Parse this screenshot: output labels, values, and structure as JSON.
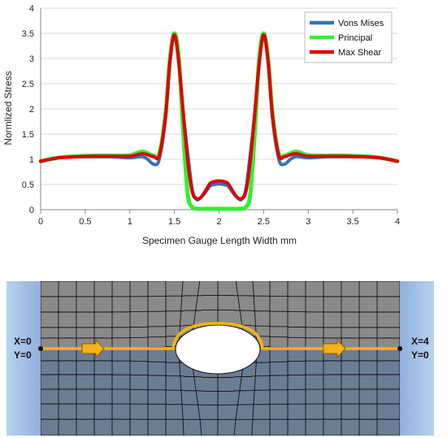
{
  "chart_data": {
    "type": "line",
    "title": "",
    "xlabel": "Specimen Gauge Length Width mm",
    "ylabel": "Normlized Stress",
    "xlim": [
      0,
      4
    ],
    "ylim": [
      0,
      4
    ],
    "xticks": [
      "0",
      "0.5",
      "1",
      "1.5",
      "2",
      "2.5",
      "3",
      "3.5",
      "4"
    ],
    "yticks": [
      "0",
      "0.5",
      "1",
      "1.5",
      "2",
      "2.5",
      "3",
      "3.5",
      "4"
    ],
    "grid": "horizontal",
    "legend_position": "top-right",
    "x": [
      0,
      0.2,
      0.4,
      0.6,
      0.8,
      1.0,
      1.1,
      1.15,
      1.2,
      1.27,
      1.33,
      1.4,
      1.45,
      1.5,
      1.55,
      1.6,
      1.65,
      1.7,
      1.75,
      1.8,
      1.85,
      1.9,
      1.95,
      2.0,
      2.05,
      2.1,
      2.15,
      2.2,
      2.25,
      2.3,
      2.35,
      2.4,
      2.45,
      2.5,
      2.55,
      2.6,
      2.67,
      2.73,
      2.8,
      2.85,
      2.9,
      3.0,
      3.2,
      3.4,
      3.6,
      3.8,
      4.0
    ],
    "series": [
      {
        "name": "Vons Mises",
        "color": "#2e75b6",
        "values": [
          0.97,
          1.03,
          1.05,
          1.05,
          1.05,
          1.03,
          1.05,
          1.05,
          1.0,
          0.9,
          1.0,
          1.8,
          2.9,
          3.47,
          2.9,
          1.9,
          1.1,
          0.4,
          0.2,
          0.25,
          0.35,
          0.47,
          0.5,
          0.51,
          0.5,
          0.47,
          0.35,
          0.25,
          0.2,
          0.4,
          1.1,
          1.9,
          2.9,
          3.47,
          2.9,
          1.8,
          1.0,
          0.9,
          1.0,
          1.05,
          1.05,
          1.03,
          1.05,
          1.05,
          1.05,
          1.03,
          0.97
        ]
      },
      {
        "name": "Principal",
        "color": "#33ee33",
        "values": [
          0.96,
          1.03,
          1.06,
          1.07,
          1.07,
          1.08,
          1.14,
          1.15,
          1.12,
          1.07,
          1.1,
          1.9,
          3.0,
          3.5,
          3.0,
          1.5,
          0.3,
          0.05,
          0.02,
          0.01,
          0.01,
          0.01,
          0.01,
          0.01,
          0.01,
          0.01,
          0.01,
          0.01,
          0.02,
          0.05,
          0.3,
          1.5,
          3.0,
          3.5,
          3.0,
          1.9,
          1.1,
          1.07,
          1.12,
          1.15,
          1.14,
          1.08,
          1.07,
          1.07,
          1.06,
          1.03,
          0.96
        ]
      },
      {
        "name": "Max Shear",
        "color": "#e00000",
        "values": [
          0.96,
          1.03,
          1.05,
          1.06,
          1.06,
          1.06,
          1.1,
          1.11,
          1.09,
          1.05,
          1.08,
          1.85,
          2.95,
          3.47,
          2.9,
          1.9,
          0.95,
          0.35,
          0.22,
          0.25,
          0.38,
          0.52,
          0.56,
          0.57,
          0.56,
          0.52,
          0.38,
          0.25,
          0.22,
          0.35,
          0.95,
          1.9,
          2.9,
          3.47,
          2.95,
          1.85,
          1.08,
          1.05,
          1.09,
          1.11,
          1.1,
          1.06,
          1.06,
          1.06,
          1.05,
          1.03,
          0.96
        ]
      }
    ]
  },
  "specimen": {
    "left_label_x": "X=0",
    "left_label_y": "Y=0",
    "right_label_x": "X=4",
    "right_label_y": "Y=0",
    "path_color": "#f5b21a",
    "upper_region_color": "#8a8a8a",
    "lower_region_color": "#6b7d94",
    "side_color": "#a9c4e8"
  }
}
